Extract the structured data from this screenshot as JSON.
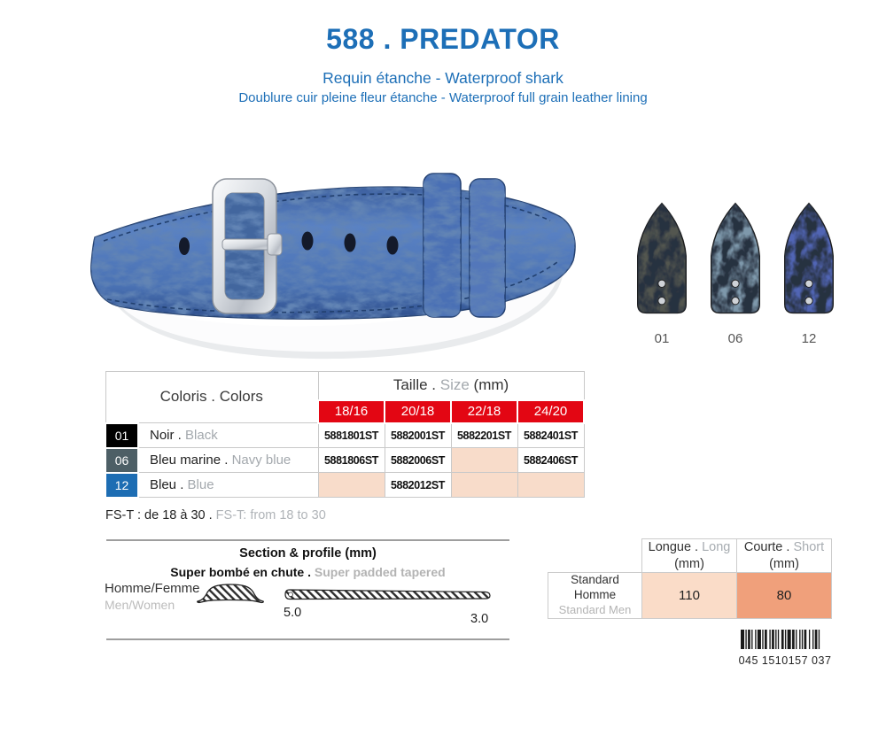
{
  "separator": " . ",
  "header": {
    "title": "588 . PREDATOR",
    "subtitle1": "Requin étanche - Waterproof shark",
    "subtitle2": "Doublure cuir pleine fleur étanche - Waterproof full grain leather lining"
  },
  "colors": {
    "accent_blue": "#1d6fb7",
    "red": "#e30613",
    "empty_cell": "#f8dcca",
    "long_cell": "#fadcc8",
    "short_cell": "#f0a07b"
  },
  "swatches": [
    {
      "code": "01",
      "color": "#53564f"
    },
    {
      "code": "06",
      "color": "#7e98ab"
    },
    {
      "code": "12",
      "color": "#5165b4"
    }
  ],
  "size_table": {
    "coloris_fr": "Coloris",
    "coloris_en": "Colors",
    "taille_fr": "Taille",
    "taille_en": "Size",
    "taille_unit": " (mm)",
    "sizes": [
      "18/16",
      "20/18",
      "22/18",
      "24/20"
    ],
    "rows": [
      {
        "code": "01",
        "swatch": "#000000",
        "name_fr": "Noir",
        "name_en": "Black",
        "refs": [
          "5881801ST",
          "5882001ST",
          "5882201ST",
          "5882401ST"
        ]
      },
      {
        "code": "06",
        "swatch": "#4d5f66",
        "name_fr": "Bleu marine",
        "name_en": "Navy blue",
        "refs": [
          "5881806ST",
          "5882006ST",
          "",
          "5882406ST"
        ]
      },
      {
        "code": "12",
        "swatch": "#1d6db3",
        "name_fr": "Bleu",
        "name_en": "Blue",
        "refs": [
          "",
          "5882012ST",
          "",
          ""
        ]
      }
    ]
  },
  "fst_note": {
    "fr": "FS-T : de 18 à 30 .",
    "en": " FS-T: from 18 to 30"
  },
  "section_profile": {
    "title": "Section & profile (mm)",
    "subtitle_fr": "Super bombé en chute .",
    "subtitle_en": " Super padded tapered",
    "row_label_fr": "Homme/Femme",
    "row_label_en": "Men/Women",
    "thickness_start": "5.0",
    "thickness_end": "3.0"
  },
  "length_table": {
    "col_long_fr": "Longue",
    "col_long_en": "Long",
    "col_long_unit": "(mm)",
    "col_short_fr": "Courte",
    "col_short_en": "Short",
    "col_short_unit": "(mm)",
    "row_label_fr": "Standard Homme",
    "row_label_en": "Standard Men",
    "long_value": "110",
    "short_value": "80"
  },
  "barcode": {
    "text": "045 1510157 037"
  }
}
